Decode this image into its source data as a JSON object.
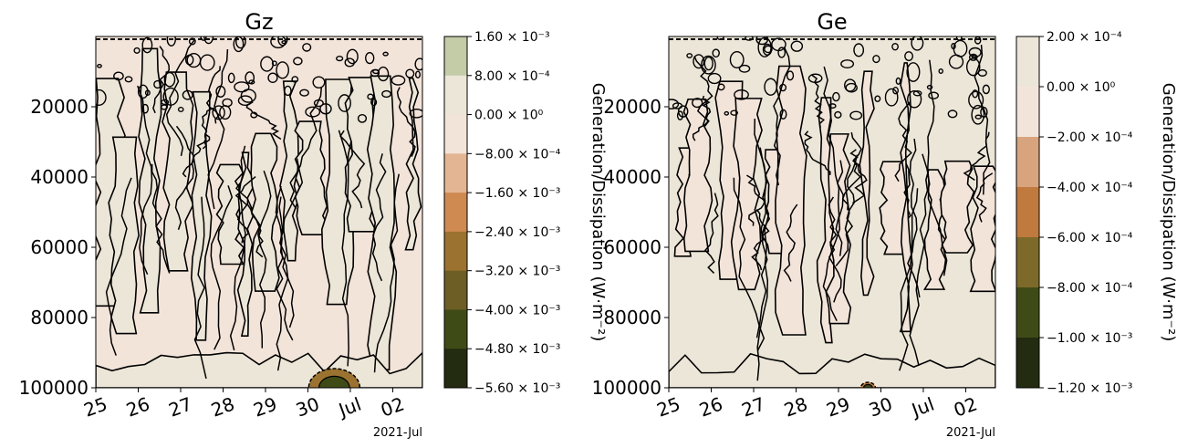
{
  "chart_data": [
    {
      "type": "heatmap",
      "title": "Gz",
      "xlabel": "",
      "ylabel": "",
      "x_ticks": [
        "25",
        "26",
        "27",
        "28",
        "29",
        "30",
        "Jul",
        "02"
      ],
      "x_offset_label": "2021-Jul",
      "y_ticks": [
        "20000",
        "40000",
        "60000",
        "80000",
        "100000"
      ],
      "ylim": [
        100000,
        0
      ],
      "colorbar": {
        "label": "Generation/Dissipation (W·m⁻²)",
        "ticks": [
          "1.60 × 10⁻³",
          "8.00 × 10⁻⁴",
          "0.00 × 10⁰",
          "−8.00 × 10⁻⁴",
          "−1.60 × 10⁻³",
          "−2.40 × 10⁻³",
          "−3.20 × 10⁻³",
          "−4.00 × 10⁻³",
          "−4.80 × 10⁻³",
          "−5.60 × 10⁻³"
        ],
        "levels": [
          0.0016,
          0.0008,
          0,
          -0.0008,
          -0.0016,
          -0.0024,
          -0.0032,
          -0.004,
          -0.0048,
          -0.0056
        ],
        "colors": [
          "#c3cba7",
          "#ece6d8",
          "#f3e4da",
          "#e3b592",
          "#cf8a52",
          "#9c7230",
          "#6c5e24",
          "#3f4b16",
          "#232b11"
        ]
      },
      "dominant_fill": "#f3e4da",
      "secondary_fill": "#ece6d8"
    },
    {
      "type": "heatmap",
      "title": "Ge",
      "xlabel": "",
      "ylabel": "",
      "x_ticks": [
        "25",
        "26",
        "27",
        "28",
        "29",
        "30",
        "Jul",
        "02"
      ],
      "x_offset_label": "2021-Jul",
      "y_ticks": [
        "20000",
        "40000",
        "60000",
        "80000",
        "100000"
      ],
      "ylim": [
        100000,
        0
      ],
      "colorbar": {
        "label": "Generation/Dissipation (W·m⁻²)",
        "ticks": [
          "2.00 × 10⁻⁴",
          "0.00 × 10⁰",
          "−2.00 × 10⁻⁴",
          "−4.00 × 10⁻⁴",
          "−6.00 × 10⁻⁴",
          "−8.00 × 10⁻⁴",
          "−1.00 × 10⁻³",
          "−1.20 × 10⁻³"
        ],
        "levels": [
          0.0002,
          0,
          -0.0002,
          -0.0004,
          -0.0006,
          -0.0008,
          -0.001,
          -0.0012
        ],
        "colors": [
          "#ece6d8",
          "#f3e4da",
          "#d8a47e",
          "#c07a3e",
          "#7d6a2a",
          "#3f4b16",
          "#232b11"
        ]
      },
      "dominant_fill": "#ece6d8",
      "secondary_fill": "#f3e4da"
    }
  ]
}
